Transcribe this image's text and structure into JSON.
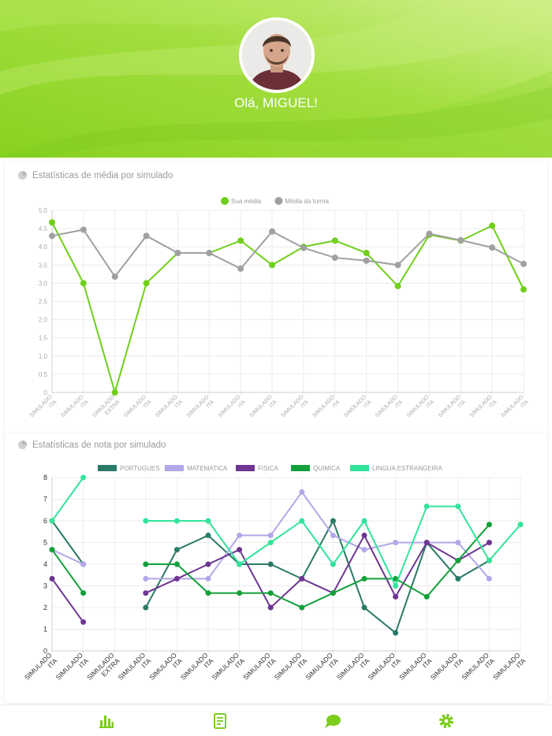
{
  "profile": {
    "greeting": "Olá, MIGUEL!"
  },
  "colors": {
    "accent": "#7dcc1e",
    "header_light": "#c6ec77",
    "header_mid": "#9fdc3c",
    "gray_series": "#a0a0a0"
  },
  "card_media": {
    "title": "Estatísticas de média por simulado",
    "icon": "chart-pie-icon"
  },
  "card_notas": {
    "title": "Estatísticas de nota por simulado",
    "icon": "chart-pie-icon"
  },
  "tabs": [
    {
      "name": "stats",
      "icon": "bar-chart-icon"
    },
    {
      "name": "exams",
      "icon": "document-icon"
    },
    {
      "name": "chat",
      "icon": "chat-bubble-icon"
    },
    {
      "name": "settings",
      "icon": "gear-icon"
    }
  ],
  "chart_data": [
    {
      "type": "line",
      "title": "Estatísticas de média por simulado",
      "categories": [
        [
          "SIMULADO",
          "ITA"
        ],
        [
          "SIMULADO",
          "ITA"
        ],
        [
          "SIMULADO",
          "EXTRA"
        ],
        [
          "SIMULADO",
          "ITA"
        ],
        [
          "SIMULADO",
          "ITA"
        ],
        [
          "SIMULADO",
          "ITA"
        ],
        [
          "SIMULADO",
          "ITA"
        ],
        [
          "SIMULADO",
          "ITA"
        ],
        [
          "SIMULADO",
          "ITA"
        ],
        [
          "SIMULADO",
          "ITA"
        ],
        [
          "SIMULADO",
          "ITA"
        ],
        [
          "SIMULADO",
          "ITA"
        ],
        [
          "SIMULADO",
          "ITA"
        ],
        [
          "SIMULADO",
          "ITA"
        ],
        [
          "SIMULADO",
          "ITA"
        ],
        [
          "SIMULADO",
          "ITA"
        ]
      ],
      "ylim": [
        0,
        5
      ],
      "yticks": [
        "0",
        "0.5",
        "1.0",
        "1.5",
        "2.0",
        "2.5",
        "3.0",
        "3.5",
        "4.0",
        "4.5",
        "5.0"
      ],
      "series": [
        {
          "name": "Sua média",
          "color": "#6fcf1a",
          "values": [
            4.67,
            3.0,
            0.0,
            3.0,
            3.83,
            3.83,
            4.17,
            3.5,
            4.0,
            4.17,
            3.83,
            2.92,
            4.33,
            4.17,
            4.58,
            2.83
          ]
        },
        {
          "name": "Média da turma",
          "color": "#a0a0a0",
          "values": [
            4.3,
            4.47,
            3.18,
            4.3,
            3.83,
            3.83,
            3.4,
            4.42,
            3.97,
            3.7,
            3.62,
            3.5,
            4.36,
            4.18,
            3.98,
            3.53
          ]
        }
      ]
    },
    {
      "type": "line",
      "title": "Estatísticas de nota por simulado",
      "categories": [
        [
          "SIMULADO",
          "ITA"
        ],
        [
          "SIMULADO",
          "ITA"
        ],
        [
          "SIMULADO",
          "EXTRA"
        ],
        [
          "SIMULADO",
          "ITA"
        ],
        [
          "SIMULADO",
          "ITA"
        ],
        [
          "SIMULADO",
          "ITA"
        ],
        [
          "SIMULADO",
          "ITA"
        ],
        [
          "SIMULADO",
          "ITA"
        ],
        [
          "SIMULADO",
          "ITA"
        ],
        [
          "SIMULADO",
          "ITA"
        ],
        [
          "SIMULADO",
          "ITA"
        ],
        [
          "SIMULADO",
          "ITA"
        ],
        [
          "SIMULADO",
          "ITA"
        ],
        [
          "SIMULADO",
          "ITA"
        ],
        [
          "SIMULADO",
          "ITA"
        ],
        [
          "SIMULADO",
          "ITA"
        ]
      ],
      "ylim": [
        0,
        8
      ],
      "yticks": [
        "0",
        "1",
        "2",
        "3",
        "4",
        "5",
        "6",
        "7",
        "8"
      ],
      "series": [
        {
          "name": "PORTUGUES",
          "color": "#2a7a68",
          "values": [
            6,
            4,
            null,
            2,
            4.67,
            5.33,
            4,
            4,
            3.33,
            6,
            2,
            0.83,
            5,
            3.33,
            4.17,
            null
          ]
        },
        {
          "name": "MATEMATICA",
          "color": "#b3a7e8",
          "values": [
            4.67,
            4,
            null,
            3.33,
            3.33,
            3.33,
            5.33,
            5.33,
            7.33,
            5.33,
            4.67,
            5,
            5,
            5,
            3.33,
            null
          ]
        },
        {
          "name": "FISICA",
          "color": "#6e3591",
          "values": [
            3.33,
            1.33,
            null,
            2.67,
            3.33,
            4,
            4.67,
            2,
            3.33,
            2.67,
            5.33,
            2.5,
            5,
            4.17,
            5,
            null
          ]
        },
        {
          "name": "QUIMICA",
          "color": "#13a03a",
          "values": [
            4.67,
            2.67,
            null,
            4,
            4,
            2.67,
            2.67,
            2.67,
            2,
            2.67,
            3.33,
            3.33,
            2.5,
            4.17,
            5.83,
            null
          ]
        },
        {
          "name": "LINGUA ESTRANGEIRA",
          "color": "#33e39b",
          "values": [
            6,
            8,
            null,
            6,
            6,
            6,
            4,
            5,
            6,
            4,
            6,
            3,
            6.67,
            6.67,
            4.17,
            5.83
          ]
        }
      ]
    }
  ]
}
